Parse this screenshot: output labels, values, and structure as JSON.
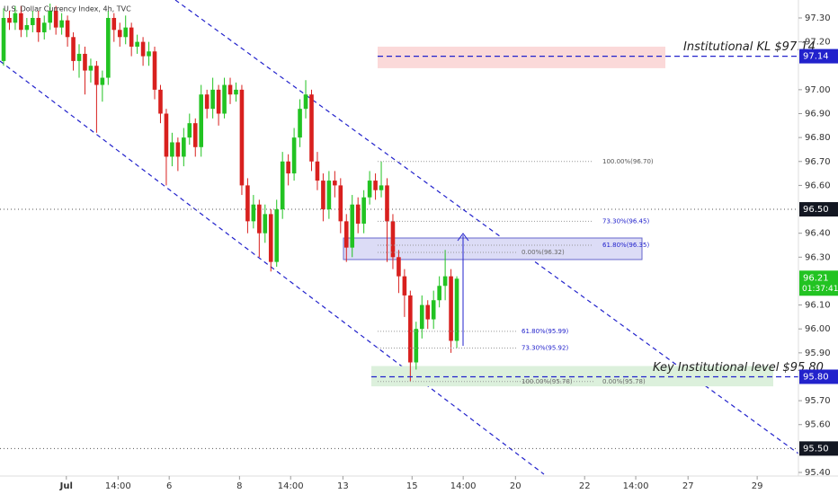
{
  "chart_data": {
    "type": "candlestick",
    "title": "U.S. Dollar Currency Index, 4h, TVC",
    "open": [
      97.12,
      97.3,
      97.28,
      97.32,
      97.25,
      97.27,
      97.3,
      97.24,
      97.28,
      97.33,
      97.26,
      97.29,
      97.22,
      97.12,
      97.15,
      97.08,
      97.1,
      97.02,
      97.05,
      97.3,
      97.25,
      97.22,
      97.26,
      97.18,
      97.2,
      97.14,
      97.16,
      97.0,
      96.9,
      96.72,
      96.78,
      96.72,
      96.8,
      96.86,
      96.76,
      96.98,
      96.92,
      97.0,
      96.9,
      97.02,
      96.98,
      97.0,
      96.6,
      96.45,
      96.52,
      96.4,
      96.48,
      96.28,
      96.5,
      96.7,
      96.65,
      96.8,
      96.92,
      96.98,
      96.7,
      96.62,
      96.5,
      96.62,
      96.6,
      96.45,
      96.34,
      96.52,
      96.44,
      96.55,
      96.62,
      96.58,
      96.6,
      96.45,
      96.3,
      96.22,
      96.14,
      95.86,
      96.0,
      96.1,
      96.04,
      96.12,
      96.18,
      96.22,
      95.95
    ],
    "high": [
      97.34,
      97.33,
      97.35,
      97.35,
      97.3,
      97.33,
      97.33,
      97.31,
      97.36,
      97.35,
      97.32,
      97.31,
      97.24,
      97.19,
      97.18,
      97.13,
      97.12,
      97.08,
      97.33,
      97.32,
      97.28,
      97.31,
      97.28,
      97.23,
      97.22,
      97.2,
      97.18,
      97.02,
      96.92,
      96.82,
      96.8,
      96.84,
      96.9,
      96.88,
      97.02,
      97.0,
      97.05,
      97.02,
      97.05,
      97.05,
      97.03,
      97.02,
      96.63,
      96.56,
      96.54,
      96.52,
      96.5,
      96.54,
      96.74,
      96.73,
      96.84,
      96.96,
      97.04,
      97.0,
      96.74,
      96.65,
      96.66,
      96.66,
      96.63,
      96.48,
      96.56,
      96.55,
      96.58,
      96.66,
      96.65,
      96.7,
      96.63,
      96.48,
      96.33,
      96.25,
      96.16,
      96.03,
      96.14,
      96.12,
      96.16,
      96.22,
      96.33,
      96.25,
      96.22
    ],
    "low": [
      97.1,
      97.25,
      97.25,
      97.22,
      97.22,
      97.24,
      97.2,
      97.21,
      97.25,
      97.23,
      97.23,
      97.18,
      97.08,
      97.05,
      96.98,
      97.03,
      96.82,
      96.95,
      97.02,
      97.2,
      97.18,
      97.19,
      97.14,
      97.15,
      97.1,
      97.1,
      96.96,
      96.86,
      96.6,
      96.68,
      96.66,
      96.68,
      96.77,
      96.72,
      96.72,
      96.88,
      96.88,
      96.85,
      96.88,
      96.94,
      96.95,
      96.56,
      96.4,
      96.42,
      96.3,
      96.36,
      96.24,
      96.26,
      96.46,
      96.6,
      96.62,
      96.76,
      96.88,
      96.66,
      96.58,
      96.45,
      96.46,
      96.55,
      96.4,
      96.28,
      96.3,
      96.4,
      96.4,
      96.52,
      96.54,
      96.55,
      96.28,
      96.25,
      96.15,
      96.05,
      95.78,
      95.83,
      95.96,
      96.0,
      96.0,
      96.09,
      96.12,
      95.9,
      95.92
    ],
    "close": [
      97.3,
      97.28,
      97.32,
      97.25,
      97.27,
      97.3,
      97.24,
      97.28,
      97.33,
      97.26,
      97.29,
      97.22,
      97.12,
      97.15,
      97.08,
      97.1,
      97.02,
      97.05,
      97.3,
      97.25,
      97.22,
      97.26,
      97.18,
      97.2,
      97.14,
      97.16,
      97.0,
      96.9,
      96.72,
      96.78,
      96.72,
      96.8,
      96.86,
      96.76,
      96.98,
      96.92,
      97.0,
      96.9,
      97.02,
      96.98,
      97.0,
      96.6,
      96.45,
      96.52,
      96.4,
      96.48,
      96.28,
      96.5,
      96.7,
      96.65,
      96.8,
      96.92,
      96.98,
      96.7,
      96.62,
      96.5,
      96.62,
      96.6,
      96.45,
      96.34,
      96.52,
      96.44,
      96.55,
      96.62,
      96.58,
      96.6,
      96.45,
      96.3,
      96.22,
      96.14,
      95.86,
      96.0,
      96.1,
      96.04,
      96.12,
      96.18,
      96.22,
      95.95,
      96.21
    ],
    "up_color": "#22c322",
    "down_color": "#d8201e",
    "ylim": [
      95.385,
      97.375
    ],
    "yticks": [
      {
        "value": 97.3,
        "label": "97.30"
      },
      {
        "value": 97.2,
        "label": "97.20"
      },
      {
        "value": 97.0,
        "label": "97.00"
      },
      {
        "value": 96.9,
        "label": "96.90"
      },
      {
        "value": 96.8,
        "label": "96.80"
      },
      {
        "value": 96.7,
        "label": "96.70"
      },
      {
        "value": 96.6,
        "label": "96.60"
      },
      {
        "value": 96.4,
        "label": "96.40"
      },
      {
        "value": 96.3,
        "label": "96.30"
      },
      {
        "value": 96.1,
        "label": "96.10"
      },
      {
        "value": 96.0,
        "label": "96.00"
      },
      {
        "value": 95.9,
        "label": "95.90"
      },
      {
        "value": 95.7,
        "label": "95.70"
      },
      {
        "value": 95.6,
        "label": "95.60"
      },
      {
        "value": 95.4,
        "label": "95.40"
      }
    ],
    "xlim": [
      -0.62,
      136.8
    ],
    "xticks": [
      {
        "value": 10.8,
        "label": "Jul"
      },
      {
        "value": 19.7,
        "label": "14:00"
      },
      {
        "value": 28.5,
        "label": "6"
      },
      {
        "value": 40.6,
        "label": "8"
      },
      {
        "value": 49.4,
        "label": "14:00"
      },
      {
        "value": 58.4,
        "label": "13"
      },
      {
        "value": 70.3,
        "label": "15"
      },
      {
        "value": 79.1,
        "label": "14:00"
      },
      {
        "value": 88.1,
        "label": "20"
      },
      {
        "value": 100,
        "label": "22"
      },
      {
        "value": 108.8,
        "label": "14:00"
      },
      {
        "value": 117.8,
        "label": "27"
      },
      {
        "value": 129.7,
        "label": "29"
      }
    ],
    "countdown": "01:37:41",
    "hlines": [
      {
        "value": 96.5,
        "label": "96.50"
      },
      {
        "value": 95.5,
        "label": "95.50"
      }
    ],
    "key_levels": [
      {
        "value": 97.14,
        "label": "97.14",
        "annotation": "Institutional KL $97.14",
        "zone": [
          97.18,
          97.09
        ],
        "zone_color": "#fbd9d9"
      },
      {
        "value": 95.8,
        "label": "95.80",
        "annotation": "Key Institutional level $95.80",
        "zone": [
          95.845,
          95.76
        ],
        "zone_color": "#dcf0dc"
      }
    ],
    "level_color": "#2222cc",
    "box": [
      96.38,
      96.29
    ],
    "fib_levels": [
      {
        "value": 96.7,
        "label": "100.00%(96.70)"
      },
      {
        "value": 96.45,
        "label": "73.30%(96.45)"
      },
      {
        "value": 96.35,
        "label": "61.80%(96.35)"
      },
      {
        "value": 96.32,
        "label": "0.00%(96.32)"
      },
      {
        "value": 95.99,
        "label": "61.80%(95.99)"
      },
      {
        "value": 95.92,
        "label": "73.30%(95.92)"
      },
      {
        "value": 95.78,
        "label": "100.00%(95.78)"
      },
      {
        "value": 95.78,
        "label": "0.00%(95.78)"
      }
    ]
  }
}
